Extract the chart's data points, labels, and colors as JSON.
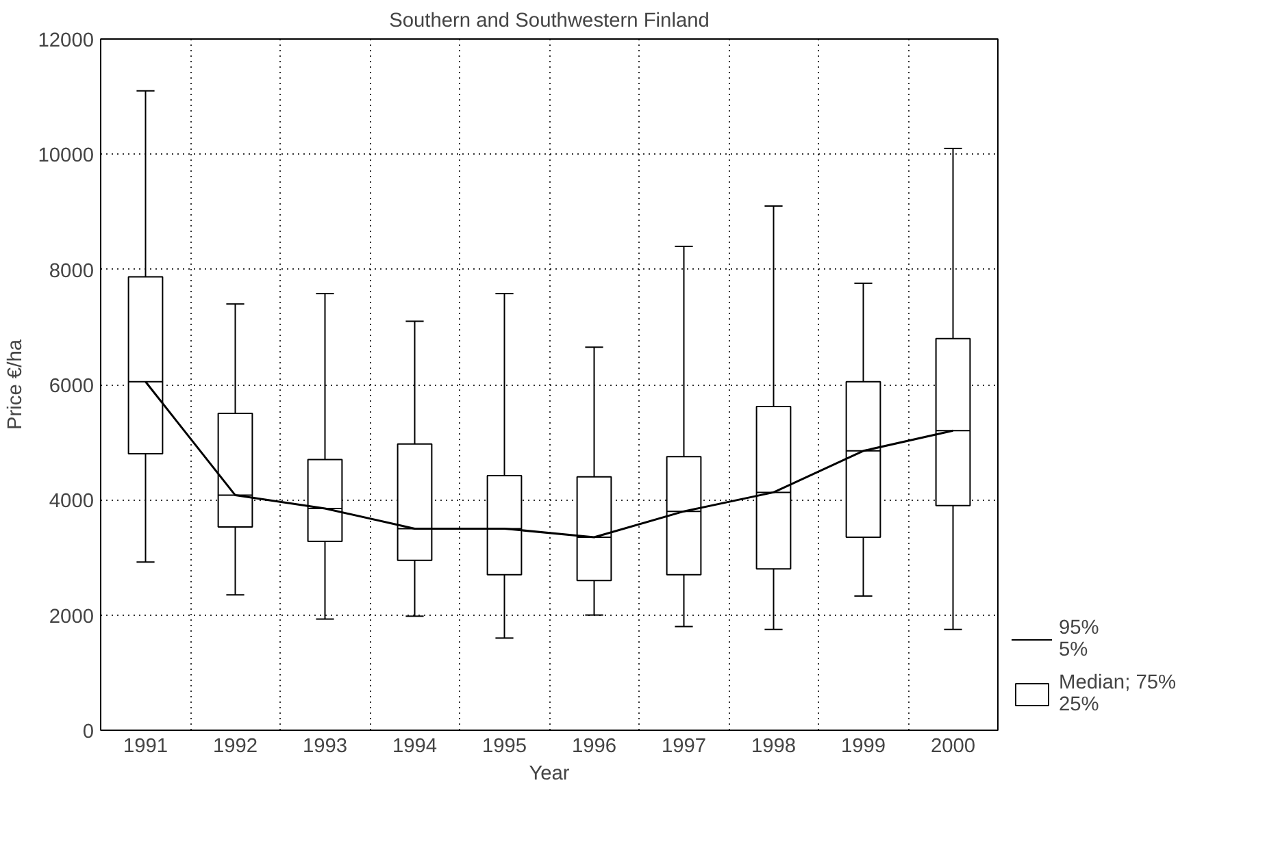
{
  "chart_data": {
    "type": "box",
    "title": "Southern and Southwestern Finland",
    "xlabel": "Year",
    "ylabel": "Price €/ha",
    "categories": [
      "1991",
      "1992",
      "1993",
      "1994",
      "1995",
      "1996",
      "1997",
      "1998",
      "1999",
      "2000"
    ],
    "ylim": [
      0,
      12000
    ],
    "yticks": [
      0,
      2000,
      4000,
      6000,
      8000,
      10000,
      12000
    ],
    "grid": true,
    "legend": "bottom right",
    "annotations": [
      "95%\n5%"
    ],
    "series": [
      {
        "name": "Median; 75%\n25%",
        "color": "#000000",
        "boxes": [
          {
            "low": 2920,
            "q1": 4800,
            "median": 6050,
            "q3": 7870,
            "high": 11100
          },
          {
            "low": 2350,
            "q1": 3530,
            "median": 4080,
            "q3": 5500,
            "high": 7400
          },
          {
            "low": 1930,
            "q1": 3280,
            "median": 3850,
            "q3": 4700,
            "high": 7580
          },
          {
            "low": 1980,
            "q1": 2950,
            "median": 3500,
            "q3": 4970,
            "high": 7100
          },
          {
            "low": 1600,
            "q1": 2700,
            "median": 3500,
            "q3": 4420,
            "high": 7580
          },
          {
            "low": 2000,
            "q1": 2600,
            "median": 3350,
            "q3": 4400,
            "high": 6650
          },
          {
            "low": 1800,
            "q1": 2700,
            "median": 3800,
            "q3": 4750,
            "high": 8400
          },
          {
            "low": 1750,
            "q1": 2800,
            "median": 4130,
            "q3": 5620,
            "high": 9100
          },
          {
            "low": 2330,
            "q1": 3350,
            "median": 4850,
            "q3": 6050,
            "high": 7760
          },
          {
            "low": 1750,
            "q1": 3900,
            "median": 5200,
            "q3": 6800,
            "high": 10100
          }
        ]
      },
      {
        "type": "line",
        "color": "#000000",
        "values": [
          6050,
          4080,
          3850,
          3500,
          3500,
          3350,
          3800,
          4130,
          4850,
          5200
        ]
      }
    ]
  }
}
